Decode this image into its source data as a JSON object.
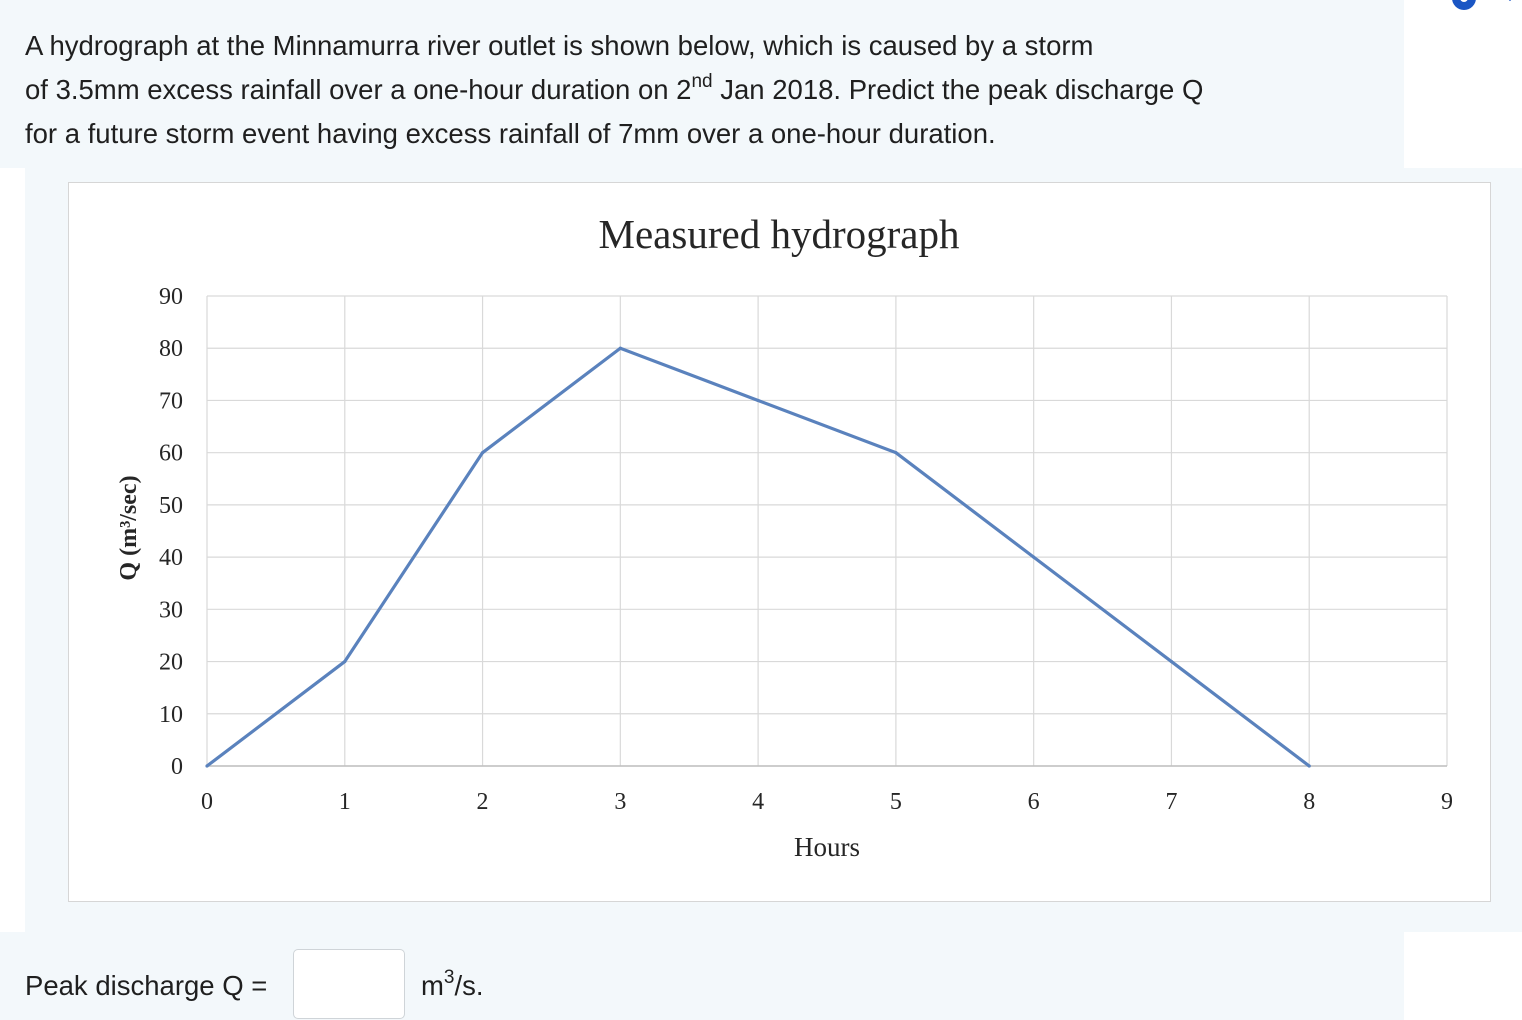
{
  "question": {
    "line1": "A hydrograph at the Minnamurra river outlet is shown below, which is caused by a storm",
    "line2_pre": "of 3.5mm excess rainfall over a one-hour duration on 2",
    "line2_sup": "nd",
    "line2_post": " Jan 2018. Predict the peak discharge Q",
    "line3": "for a future storm event having excess rainfall of 7mm over a one-hour duration."
  },
  "chart_data": {
    "type": "line",
    "title": "Measured hydrograph",
    "xlabel": "Hours",
    "ylabel": "Q (m³/sec)",
    "x": [
      0,
      1,
      2,
      3,
      4,
      5,
      6,
      7,
      8
    ],
    "series": [
      {
        "values": [
          0,
          20,
          60,
          80,
          70,
          60,
          40,
          20,
          0
        ]
      }
    ],
    "xlim": [
      0,
      9
    ],
    "ylim": [
      0,
      90
    ],
    "xticks": [
      "0",
      "1",
      "2",
      "3",
      "4",
      "5",
      "6",
      "7",
      "8",
      "9"
    ],
    "yticks": [
      "0",
      "10",
      "20",
      "30",
      "40",
      "50",
      "60",
      "70",
      "80",
      "90"
    ],
    "grid": true,
    "line_color": "#5a82bd"
  },
  "answer": {
    "label": "Peak discharge Q =",
    "value": "",
    "unit_pre": "m",
    "unit_sup": "3",
    "unit_post": "/s."
  },
  "icons": {
    "corner": "gear-icon",
    "chevron": "chevron-down-icon",
    "accent": "#1a56c4"
  }
}
